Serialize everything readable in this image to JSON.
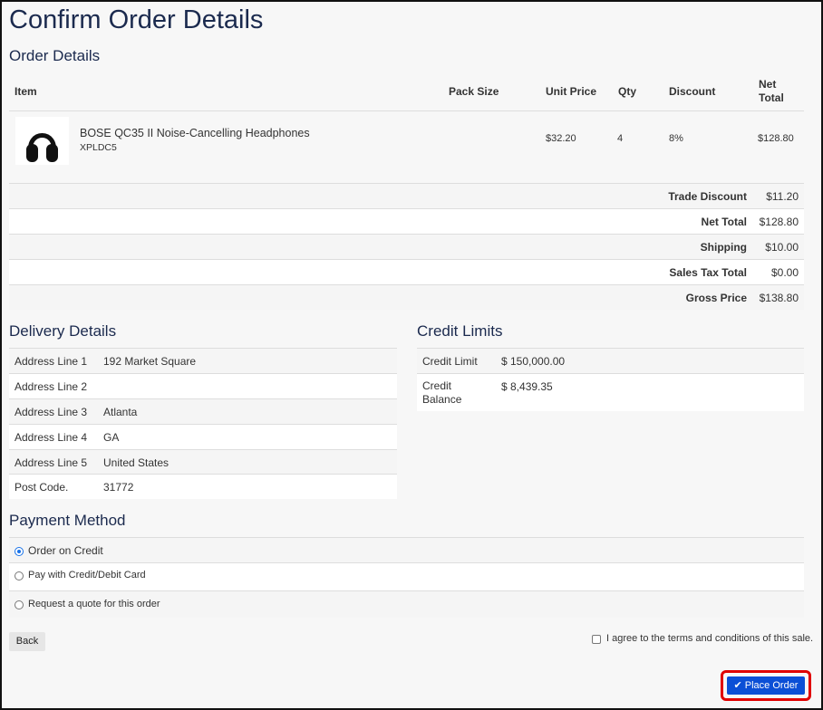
{
  "title": "Confirm Order Details",
  "order": {
    "heading": "Order Details",
    "columns": [
      "Item",
      "Pack Size",
      "Unit Price",
      "Qty",
      "Discount",
      "Net Total"
    ],
    "items": [
      {
        "name": "BOSE QC35 II Noise-Cancelling Headphones",
        "code": "XPLDC5",
        "pack_size": "",
        "unit_price": "$32.20",
        "qty": "4",
        "discount": "8%",
        "net_total": "$128.80",
        "image": "headphones"
      }
    ],
    "summary": [
      {
        "label": "Trade Discount",
        "value": "$11.20"
      },
      {
        "label": "Net Total",
        "value": "$128.80"
      },
      {
        "label": "Shipping",
        "value": "$10.00"
      },
      {
        "label": "Sales Tax Total",
        "value": "$0.00"
      },
      {
        "label": "Gross Price",
        "value": "$138.80"
      }
    ]
  },
  "delivery": {
    "heading": "Delivery Details",
    "rows": [
      {
        "k": "Address Line 1",
        "v": "192 Market Square"
      },
      {
        "k": "Address Line 2",
        "v": ""
      },
      {
        "k": "Address Line 3",
        "v": "Atlanta"
      },
      {
        "k": "Address Line 4",
        "v": "GA"
      },
      {
        "k": "Address Line 5",
        "v": "United States"
      },
      {
        "k": "Post Code.",
        "v": "31772"
      }
    ]
  },
  "credit": {
    "heading": "Credit Limits",
    "rows": [
      {
        "k": "Credit Limit",
        "v": "$ 150,000.00"
      },
      {
        "k": "Credit Balance",
        "v": "$ 8,439.35"
      }
    ]
  },
  "payment": {
    "heading": "Payment Method",
    "options": [
      {
        "label": "Order on Credit",
        "selected": true
      },
      {
        "label": "Pay with Credit/Debit Card",
        "selected": false
      },
      {
        "label": "Request a quote for this order",
        "selected": false
      }
    ]
  },
  "actions": {
    "back": "Back",
    "terms": "I agree to the terms and conditions of this sale.",
    "terms_checked": false,
    "place_order": "Place Order"
  },
  "colors": {
    "primary": "#0b4fd6",
    "highlight": "#e00000",
    "heading": "#1b2a4e"
  }
}
